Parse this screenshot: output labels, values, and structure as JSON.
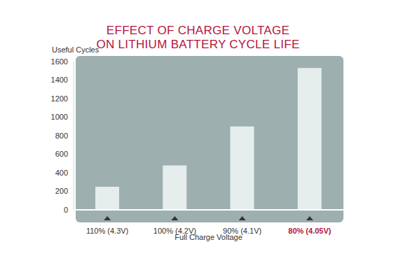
{
  "chart_data": {
    "type": "bar",
    "title": "EFFECT OF CHARGE VOLTAGE\nON LITHIUM BATTERY CYCLE LIFE",
    "y_label": "Useful Cycles",
    "x_label": "Full Charge Voltage",
    "categories": [
      "110% (4.3V)",
      "100% (4.2V)",
      "90% (4.1V)",
      "80% (4.05V)"
    ],
    "values": [
      250,
      480,
      900,
      1530
    ],
    "color": "#e6eded",
    "ylim": [
      0,
      1600
    ],
    "yticks": [
      0,
      200,
      400,
      600,
      800,
      1000,
      1200,
      1400,
      1600
    ],
    "grid": false
  }
}
